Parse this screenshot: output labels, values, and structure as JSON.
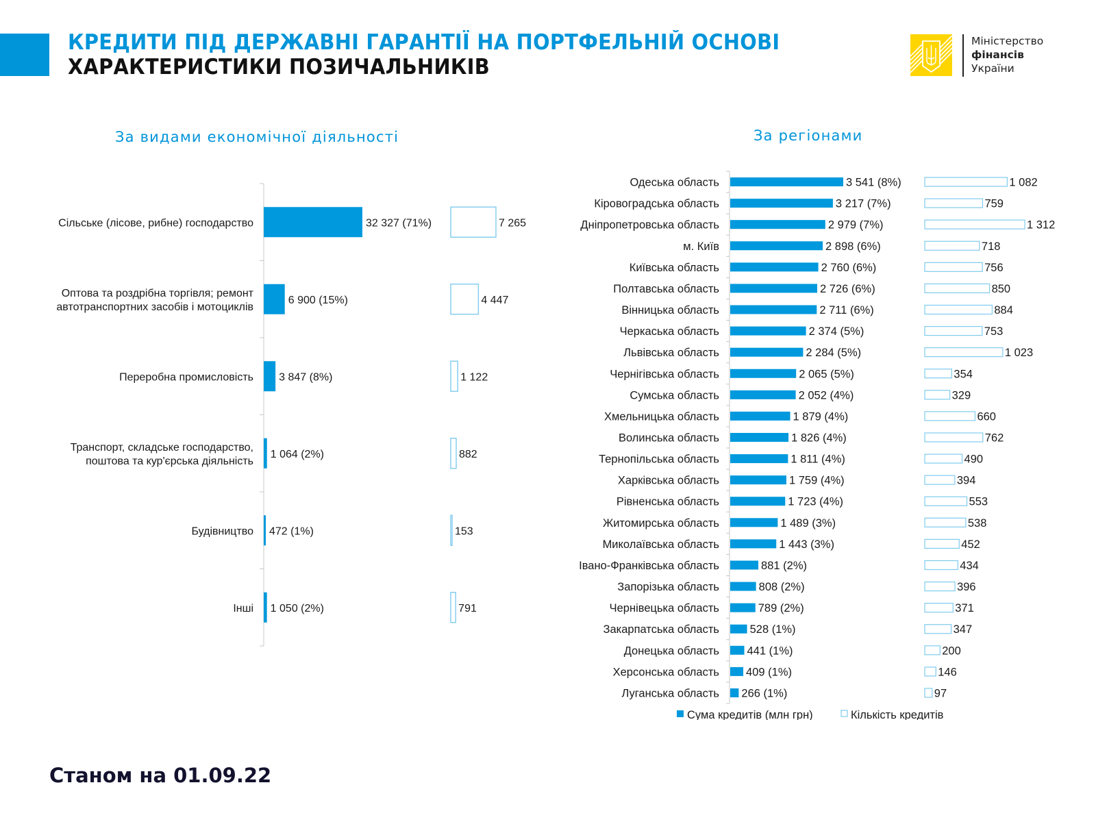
{
  "header": {
    "title_line1": "КРЕДИТИ ПІД ДЕРЖАВНІ ГАРАНТІЇ НА ПОРТФЕЛЬНІЙ ОСНОВІ",
    "title_line2": "ХАРАКТЕРИСТИКИ ПОЗИЧАЛЬНИКІВ",
    "accent_color": "#0094d9",
    "logo": {
      "icon": "trident-emblem-icon",
      "line1": "Міністерство",
      "line2": "фінансів",
      "line3": "України",
      "color": "#ffd500"
    }
  },
  "footer": {
    "date_label": "Станом на 01.09.22"
  },
  "chart_data": [
    {
      "type": "bar",
      "orientation": "horizontal",
      "title": "За видами економічної діяльності",
      "categories": [
        "Сільське (лісове, рибне) господарство",
        "Оптова та роздрібна торгівля; ремонт автотранспортних засобів і мотоциклів",
        "Переробна промисловість",
        "Транспорт, складське господарство, поштова та кур'єрська діяльність",
        "Будівництво",
        "Інші"
      ],
      "series": [
        {
          "name": "Сума кредитів (млн грн)",
          "color": "#0099dd",
          "values": [
            32327,
            6900,
            3847,
            1064,
            472,
            1050
          ],
          "labels": [
            "32 327 (71%)",
            "6 900 (15%)",
            "3 847 (8%)",
            "1 064 (2%)",
            "472 (1%)",
            "1 050 (2%)"
          ]
        },
        {
          "name": "Кількість кредитів",
          "color": "#7fcbee",
          "values": [
            7265,
            4447,
            1122,
            882,
            153,
            791
          ],
          "labels": [
            "7 265",
            "4 447",
            "1 122",
            "882",
            "153",
            "791"
          ]
        }
      ],
      "grid": false,
      "legend": "none"
    },
    {
      "type": "bar",
      "orientation": "horizontal",
      "title": "За регіонами",
      "categories": [
        "Одеська область",
        "Кіровоградська область",
        "Дніпропетровська область",
        "м. Київ",
        "Київська область",
        "Полтавська область",
        "Вінницька область",
        "Черкаська область",
        "Львівська область",
        "Чернігівська область",
        "Сумська область",
        "Хмельницька область",
        "Волинська область",
        "Тернопільська область",
        "Харківська область",
        "Рівненська область",
        "Житомирська область",
        "Миколаївська область",
        "Івано-Франківська область",
        "Запорізька область",
        "Чернівецька область",
        "Закарпатська область",
        "Донецька область",
        "Херсонська область",
        "Луганська область"
      ],
      "series": [
        {
          "name": "Сума кредитів (млн грн)",
          "color": "#0099dd",
          "values": [
            3541,
            3217,
            2979,
            2898,
            2760,
            2726,
            2711,
            2374,
            2284,
            2065,
            2052,
            1879,
            1826,
            1811,
            1759,
            1723,
            1489,
            1443,
            881,
            808,
            789,
            528,
            441,
            409,
            266
          ],
          "labels": [
            "3 541 (8%)",
            "3 217 (7%)",
            "2 979 (7%)",
            "2 898 (6%)",
            "2 760 (6%)",
            "2 726 (6%)",
            "2 711 (6%)",
            "2 374 (5%)",
            "2 284 (5%)",
            "2 065 (5%)",
            "2 052 (4%)",
            "1 879 (4%)",
            "1 826 (4%)",
            "1 811 (4%)",
            "1 759 (4%)",
            "1 723 (4%)",
            "1 489 (3%)",
            "1 443 (3%)",
            "881 (2%)",
            "808 (2%)",
            "789 (2%)",
            "528 (1%)",
            "441 (1%)",
            "409 (1%)",
            "266 (1%)"
          ]
        },
        {
          "name": "Кількість кредитів",
          "color": "#7fcbee",
          "values": [
            1082,
            759,
            1312,
            718,
            756,
            850,
            884,
            753,
            1023,
            354,
            329,
            660,
            762,
            490,
            394,
            553,
            538,
            452,
            434,
            396,
            371,
            347,
            200,
            146,
            97
          ],
          "labels": [
            "1 082",
            "759",
            "1 312",
            "718",
            "756",
            "850",
            "884",
            "753",
            "1 023",
            "354",
            "329",
            "660",
            "762",
            "490",
            "394",
            "553",
            "538",
            "452",
            "434",
            "396",
            "371",
            "347",
            "200",
            "146",
            "97"
          ]
        }
      ],
      "grid": false,
      "legend": "bottom"
    }
  ]
}
